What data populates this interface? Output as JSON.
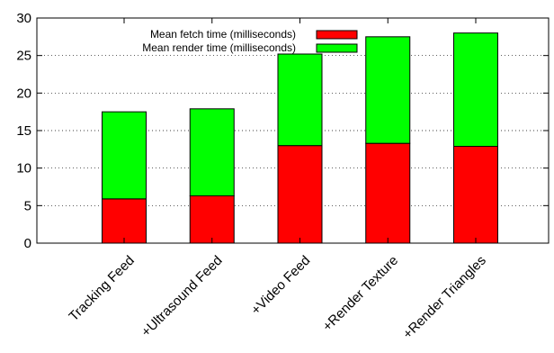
{
  "chart_data": {
    "type": "bar",
    "stacked": true,
    "categories": [
      "Tracking Feed",
      "+Ultrasound Feed",
      "+Video Feed",
      "+Render Texture",
      "+Render Triangles"
    ],
    "series": [
      {
        "name": "Mean fetch time (milliseconds)",
        "color": "#ff0000",
        "values": [
          5.9,
          6.3,
          13.0,
          13.3,
          12.9
        ]
      },
      {
        "name": "Mean render time (milliseconds)",
        "color": "#00ff00",
        "values": [
          11.6,
          11.6,
          12.2,
          14.2,
          15.1
        ]
      }
    ],
    "ylim": [
      0,
      30
    ],
    "yticks": [
      "0",
      "5",
      "10",
      "15",
      "20",
      "25",
      "30"
    ],
    "grid": true,
    "legend_position": "top-left"
  }
}
